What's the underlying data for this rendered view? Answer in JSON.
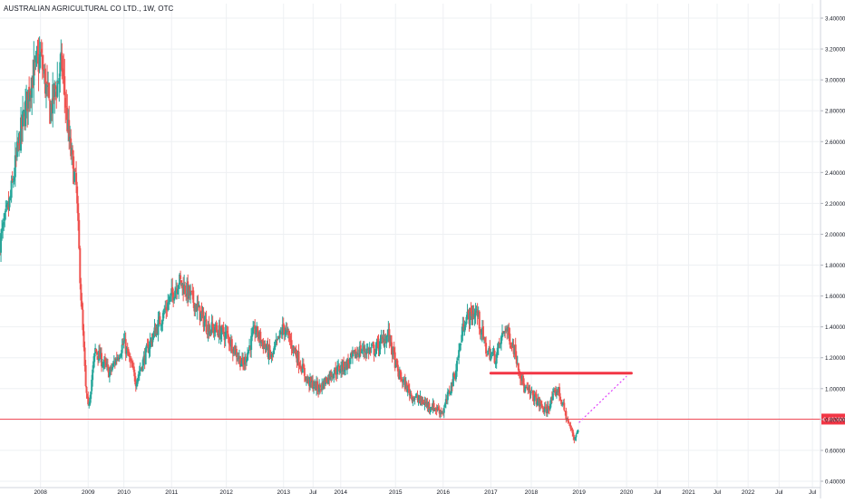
{
  "header": {
    "title": "AUSTRALIAN AGRICULTURAL CO LTD., 1W, OTC"
  },
  "chart_data": {
    "type": "candlestick",
    "title": "AUSTRALIAN AGRICULTURAL CO LTD., 1W, OTC",
    "ylim": [
      0.4,
      3.4
    ],
    "y_ticks": [
      "3.400000",
      "3.200000",
      "3.000000",
      "2.800000",
      "2.600000",
      "2.400000",
      "2.200000",
      "2.000000",
      "1.800000",
      "1.600000",
      "1.400000",
      "1.200000",
      "1.000000",
      "0.800000",
      "0.600000",
      "0.400000"
    ],
    "y_tick_values": [
      3.4,
      3.2,
      3.0,
      2.8,
      2.6,
      2.4,
      2.2,
      2.0,
      1.8,
      1.6,
      1.4,
      1.2,
      1.0,
      0.8,
      0.6,
      0.4
    ],
    "x_ticks": [
      {
        "label": "2008",
        "t": 2008.0
      },
      {
        "label": "2009",
        "t": 2009.0
      },
      {
        "label": "2010",
        "t": 2009.75
      },
      {
        "label": "2011",
        "t": 2010.75
      },
      {
        "label": "2012",
        "t": 2011.9
      },
      {
        "label": "2013",
        "t": 2013.1
      },
      {
        "label": "Jul",
        "t": 2013.72
      },
      {
        "label": "2014",
        "t": 2014.3
      },
      {
        "label": "2015",
        "t": 2015.45
      },
      {
        "label": "2016",
        "t": 2016.45
      },
      {
        "label": "2017",
        "t": 2017.45
      },
      {
        "label": "2018",
        "t": 2018.3
      },
      {
        "label": "2019",
        "t": 2019.3
      },
      {
        "label": "2020",
        "t": 2020.3
      },
      {
        "label": "Jul",
        "t": 2020.95
      },
      {
        "label": "2021",
        "t": 2021.6
      },
      {
        "label": "Jul",
        "t": 2022.2
      },
      {
        "label": "2022",
        "t": 2022.85
      },
      {
        "label": "Jul",
        "t": 2023.5
      },
      {
        "label": "Jul",
        "t": 2024.2
      }
    ],
    "x_domain": [
      2007.15,
      2024.35
    ],
    "up_color": "#26a69a",
    "down_color": "#ef5350",
    "grid": true,
    "price_line": {
      "value": 0.8026,
      "label": "0.802600",
      "color": "#f23645"
    },
    "resistance_line": {
      "from": {
        "t": 2017.45,
        "y": 1.1
      },
      "to": {
        "t": 2020.4,
        "y": 1.1
      },
      "color": "#f23645"
    },
    "projection_line": {
      "from": {
        "t": 2019.3,
        "y": 0.78
      },
      "to": {
        "t": 2020.3,
        "y": 1.08
      },
      "color": "#e040fb"
    },
    "anchor_closes": [
      {
        "t": 2007.15,
        "close": 1.95
      },
      {
        "t": 2007.35,
        "close": 2.2
      },
      {
        "t": 2007.55,
        "close": 2.6
      },
      {
        "t": 2007.8,
        "close": 3.0
      },
      {
        "t": 2008.0,
        "close": 3.15
      },
      {
        "t": 2008.2,
        "close": 2.8
      },
      {
        "t": 2008.45,
        "close": 3.1
      },
      {
        "t": 2008.6,
        "close": 2.6
      },
      {
        "t": 2008.75,
        "close": 2.3
      },
      {
        "t": 2008.85,
        "close": 1.6
      },
      {
        "t": 2008.95,
        "close": 1.0
      },
      {
        "t": 2009.0,
        "close": 0.87
      },
      {
        "t": 2009.15,
        "close": 1.25
      },
      {
        "t": 2009.45,
        "close": 1.1
      },
      {
        "t": 2009.75,
        "close": 1.3
      },
      {
        "t": 2010.0,
        "close": 1.05
      },
      {
        "t": 2010.3,
        "close": 1.3
      },
      {
        "t": 2010.6,
        "close": 1.5
      },
      {
        "t": 2010.9,
        "close": 1.7
      },
      {
        "t": 2011.15,
        "close": 1.6
      },
      {
        "t": 2011.5,
        "close": 1.4
      },
      {
        "t": 2011.9,
        "close": 1.35
      },
      {
        "t": 2012.25,
        "close": 1.15
      },
      {
        "t": 2012.5,
        "close": 1.38
      },
      {
        "t": 2012.85,
        "close": 1.2
      },
      {
        "t": 2013.1,
        "close": 1.4
      },
      {
        "t": 2013.4,
        "close": 1.2
      },
      {
        "t": 2013.6,
        "close": 1.05
      },
      {
        "t": 2013.85,
        "close": 1.0
      },
      {
        "t": 2014.1,
        "close": 1.1
      },
      {
        "t": 2014.4,
        "close": 1.15
      },
      {
        "t": 2014.7,
        "close": 1.25
      },
      {
        "t": 2015.0,
        "close": 1.25
      },
      {
        "t": 2015.3,
        "close": 1.35
      },
      {
        "t": 2015.5,
        "close": 1.1
      },
      {
        "t": 2015.8,
        "close": 0.95
      },
      {
        "t": 2016.1,
        "close": 0.9
      },
      {
        "t": 2016.45,
        "close": 0.85
      },
      {
        "t": 2016.7,
        "close": 1.1
      },
      {
        "t": 2016.9,
        "close": 1.45
      },
      {
        "t": 2017.15,
        "close": 1.5
      },
      {
        "t": 2017.35,
        "close": 1.25
      },
      {
        "t": 2017.55,
        "close": 1.2
      },
      {
        "t": 2017.75,
        "close": 1.4
      },
      {
        "t": 2017.95,
        "close": 1.25
      },
      {
        "t": 2018.15,
        "close": 1.0
      },
      {
        "t": 2018.35,
        "close": 0.95
      },
      {
        "t": 2018.6,
        "close": 0.85
      },
      {
        "t": 2018.85,
        "close": 1.0
      },
      {
        "t": 2019.05,
        "close": 0.8
      },
      {
        "t": 2019.2,
        "close": 0.68
      },
      {
        "t": 2019.3,
        "close": 0.75
      }
    ]
  }
}
